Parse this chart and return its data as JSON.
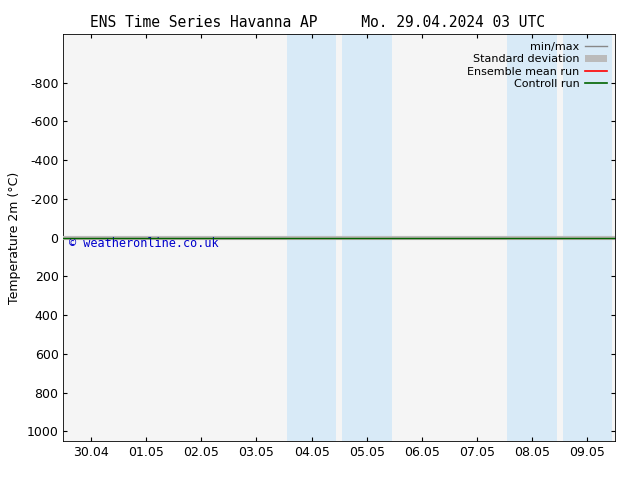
{
  "title_left": "ENS Time Series Havanna AP",
  "title_right": "Mo. 29.04.2024 03 UTC",
  "ylabel": "Temperature 2m (°C)",
  "yticks": [
    -800,
    -600,
    -400,
    -200,
    0,
    200,
    400,
    600,
    800,
    1000
  ],
  "ylim_bottom": 1050,
  "ylim_top": -1050,
  "xtick_labels": [
    "30.04",
    "01.05",
    "02.05",
    "03.05",
    "04.05",
    "05.05",
    "06.05",
    "07.05",
    "08.05",
    "09.05"
  ],
  "xtick_positions": [
    0,
    1,
    2,
    3,
    4,
    5,
    6,
    7,
    8,
    9
  ],
  "xlim": [
    -0.5,
    9.5
  ],
  "blue_bands": [
    [
      3.55,
      4.45
    ],
    [
      4.55,
      5.45
    ],
    [
      7.55,
      8.45
    ],
    [
      8.55,
      9.45
    ]
  ],
  "blue_band_color": "#d8eaf7",
  "ensemble_mean_color": "#ff0000",
  "control_run_color": "#006400",
  "minmax_color": "#888888",
  "stddev_color": "#bbbbbb",
  "background_color": "#ffffff",
  "plot_bg_color": "#f5f5f5",
  "watermark": "© weatheronline.co.uk",
  "watermark_color": "#0000cc",
  "legend_labels": [
    "min/max",
    "Standard deviation",
    "Ensemble mean run",
    "Controll run"
  ],
  "legend_line_colors": [
    "#888888",
    "#bbbbbb",
    "#ff0000",
    "#006400"
  ],
  "font_size": 9,
  "title_font_size": 10.5
}
